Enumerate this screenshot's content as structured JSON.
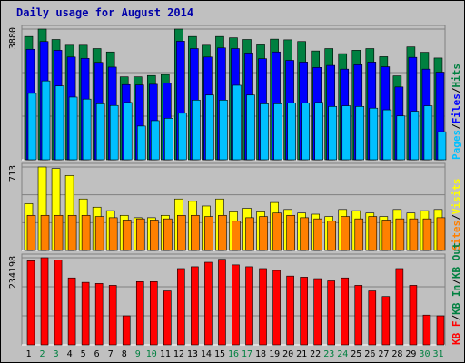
{
  "page": {
    "title": "Daily usage for August 2014"
  },
  "colors": {
    "background": "#c0c0c0",
    "plot": "#c0c0c0",
    "hits": "#008040",
    "files": "#0000ff",
    "pages": "#00c0ff",
    "visits": "#ffff00",
    "sites": "#ff8000",
    "kbytes": "#ff0000",
    "weekend": "#008040",
    "weekday": "#000000",
    "gridline": "#808080"
  },
  "chart_data": [
    {
      "type": "bar",
      "panel": "top",
      "ymax_label": "3880",
      "ymax": 3880,
      "legend": [
        {
          "text": "Pages",
          "color": "#00c0ff"
        },
        {
          "text": "/",
          "color": "#000000"
        },
        {
          "text": "Files",
          "color": "#0000ff"
        },
        {
          "text": "/",
          "color": "#000000"
        },
        {
          "text": "Hits",
          "color": "#008040"
        }
      ],
      "categories": [
        "1",
        "2",
        "3",
        "4",
        "5",
        "6",
        "7",
        "8",
        "9",
        "10",
        "11",
        "12",
        "13",
        "14",
        "15",
        "16",
        "17",
        "18",
        "19",
        "20",
        "21",
        "22",
        "23",
        "24",
        "25",
        "26",
        "27",
        "28",
        "29",
        "30",
        "31"
      ],
      "series": [
        {
          "name": "Hits",
          "values": [
            3660,
            3880,
            3570,
            3400,
            3400,
            3300,
            3200,
            2460,
            2460,
            2500,
            2530,
            3880,
            3660,
            3400,
            3660,
            3620,
            3570,
            3410,
            3580,
            3560,
            3510,
            3230,
            3300,
            3150,
            3250,
            3300,
            3060,
            2490,
            3350,
            3190,
            3020
          ]
        },
        {
          "name": "Files",
          "values": [
            3280,
            3510,
            3250,
            3050,
            3010,
            2890,
            2750,
            2230,
            2220,
            2240,
            2270,
            3520,
            3300,
            3050,
            3320,
            3300,
            3170,
            3000,
            3200,
            2950,
            2900,
            2740,
            2800,
            2690,
            2820,
            2900,
            2760,
            2160,
            3040,
            2690,
            2600
          ]
        },
        {
          "name": "Pages",
          "values": [
            1970,
            2340,
            2190,
            1860,
            1800,
            1660,
            1610,
            1700,
            1000,
            1160,
            1230,
            1380,
            1770,
            1920,
            1770,
            2210,
            1920,
            1660,
            1660,
            1680,
            1690,
            1700,
            1580,
            1600,
            1580,
            1530,
            1480,
            1300,
            1440,
            1600,
            830
          ]
        }
      ]
    },
    {
      "type": "bar",
      "panel": "middle",
      "ymax_label": "713",
      "ymax": 713,
      "legend": [
        {
          "text": "Sites",
          "color": "#ff8000"
        },
        {
          "text": "/",
          "color": "#000000"
        },
        {
          "text": "Visits",
          "color": "#ffff00"
        }
      ],
      "categories": [
        "1",
        "2",
        "3",
        "4",
        "5",
        "6",
        "7",
        "8",
        "9",
        "10",
        "11",
        "12",
        "13",
        "14",
        "15",
        "16",
        "17",
        "18",
        "19",
        "20",
        "21",
        "22",
        "23",
        "24",
        "25",
        "26",
        "27",
        "28",
        "29",
        "30",
        "31"
      ],
      "series": [
        {
          "name": "Visits",
          "values": [
            400,
            713,
            700,
            640,
            440,
            370,
            340,
            300,
            280,
            280,
            300,
            440,
            420,
            380,
            440,
            330,
            360,
            330,
            410,
            350,
            320,
            310,
            290,
            350,
            340,
            320,
            290,
            350,
            320,
            340,
            350
          ]
        },
        {
          "name": "Sites",
          "values": [
            300,
            300,
            300,
            300,
            300,
            290,
            280,
            260,
            270,
            260,
            270,
            300,
            300,
            290,
            300,
            250,
            280,
            290,
            320,
            300,
            280,
            270,
            250,
            290,
            270,
            290,
            260,
            270,
            270,
            270,
            280
          ]
        }
      ]
    },
    {
      "type": "bar",
      "panel": "bottom",
      "ymax_label": "234198",
      "ymax": 234198,
      "legend": [
        {
          "text": "KB F",
          "color": "#ff0000"
        },
        {
          "text": "/",
          "color": "#000000"
        },
        {
          "text": "KB In",
          "color": "#008040"
        },
        {
          "text": "/",
          "color": "#000000"
        },
        {
          "text": "KB Out",
          "color": "#008040"
        }
      ],
      "categories": [
        "1",
        "2",
        "3",
        "4",
        "5",
        "6",
        "7",
        "8",
        "9",
        "10",
        "11",
        "12",
        "13",
        "14",
        "15",
        "16",
        "17",
        "18",
        "19",
        "20",
        "21",
        "22",
        "23",
        "24",
        "25",
        "26",
        "27",
        "28",
        "29",
        "30",
        "31"
      ],
      "series": [
        {
          "name": "KB F",
          "values": [
            226000,
            234198,
            228000,
            180000,
            168000,
            165000,
            160000,
            78000,
            170000,
            170000,
            145000,
            205000,
            210000,
            222000,
            230000,
            215000,
            210000,
            205000,
            200000,
            185000,
            182000,
            178000,
            172000,
            180000,
            160000,
            145000,
            130000,
            205000,
            160000,
            80000,
            78000
          ]
        }
      ]
    }
  ],
  "x_axis": {
    "weekend_days": [
      "2",
      "3",
      "9",
      "10",
      "16",
      "17",
      "23",
      "24",
      "30",
      "31"
    ]
  }
}
